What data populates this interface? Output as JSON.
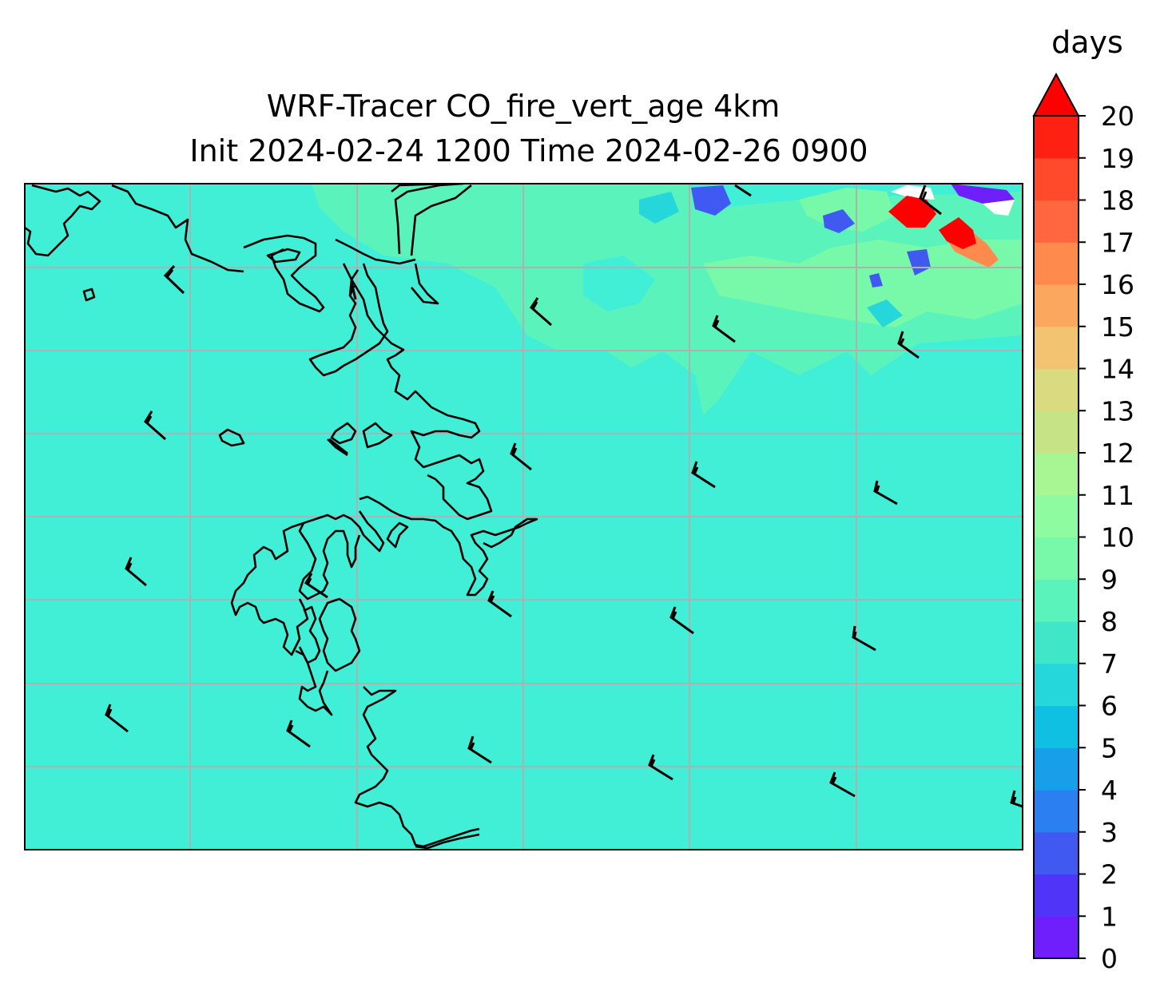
{
  "title_line1": "WRF-Tracer CO_fire_vert_age 4km",
  "title_line2": "Init 2024-02-24 1200 Time 2024-02-26 0900",
  "colorbar": {
    "units": "days",
    "extend": "max",
    "tick_labels": [
      "0",
      "1",
      "2",
      "3",
      "4",
      "5",
      "6",
      "7",
      "8",
      "9",
      "10",
      "11",
      "12",
      "13",
      "14",
      "15",
      "16",
      "17",
      "18",
      "19",
      "20"
    ],
    "level_colors": [
      "#6f1ffb",
      "#5034f7",
      "#3f59f1",
      "#2b7ff0",
      "#17a0e9",
      "#0fc0e2",
      "#25d6da",
      "#3fe7c8",
      "#5af3bc",
      "#78f9a9",
      "#8efba0",
      "#a8f594",
      "#c6e486",
      "#dadb80",
      "#f2c472",
      "#fca75f",
      "#ff8a4e",
      "#ff6740",
      "#ff4a2c",
      "#ff2014"
    ],
    "extend_color": "#ff0000"
  },
  "map": {
    "background_value_days": 7,
    "background_color": "#41eed6",
    "gridlines": true,
    "features": [
      "coastline",
      "wind-barbs",
      "age-contours"
    ]
  }
}
